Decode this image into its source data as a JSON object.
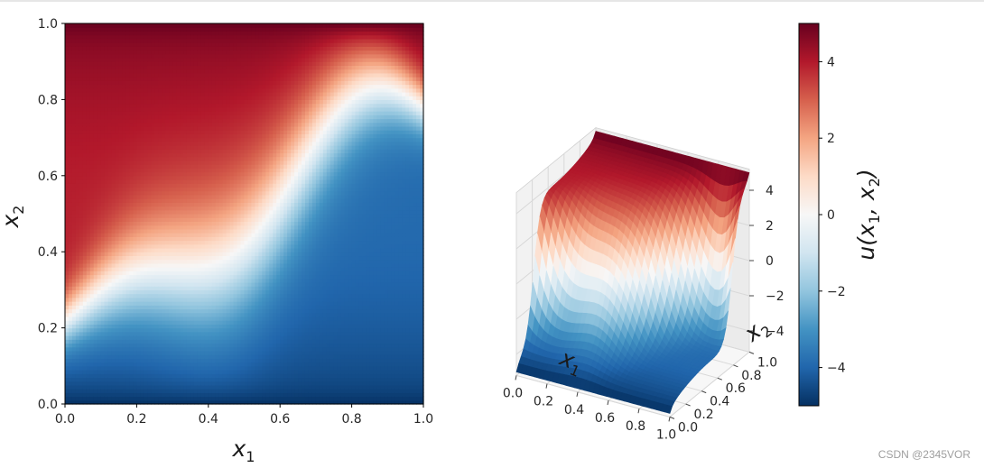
{
  "chart_data": [
    {
      "type": "heatmap",
      "title": "",
      "xlabel": "x1",
      "ylabel": "x2",
      "xlim": [
        0.0,
        1.0
      ],
      "ylim": [
        0.0,
        1.0
      ],
      "xticks": [
        "0.0",
        "0.2",
        "0.4",
        "0.6",
        "0.8",
        "1.0"
      ],
      "yticks": [
        "0.0",
        "0.2",
        "0.4",
        "0.6",
        "0.8",
        "1.0"
      ],
      "colormap": "RdBu_r",
      "value_range": [
        -5,
        5
      ],
      "boundary_values": {
        "top": 5,
        "bottom": -5,
        "left_top": 5,
        "right_bottom": -5
      },
      "grid": false
    },
    {
      "type": "surface3d",
      "xlabel": "x1",
      "ylabel": "x2",
      "xticks": [
        "0.0",
        "0.2",
        "0.4",
        "0.6",
        "0.8",
        "1.0"
      ],
      "yticks": [
        "0.0",
        "0.2",
        "0.4",
        "0.6",
        "0.8",
        "1.0"
      ],
      "zticks": [
        "4",
        "2",
        "0",
        "−2",
        "−4"
      ],
      "zlim": [
        -5,
        5
      ],
      "colormap": "RdBu_r",
      "grid": true
    },
    {
      "type": "colorbar",
      "label": "u(x1, x2)",
      "ticks": [
        "4",
        "2",
        "0",
        "−2",
        "−4"
      ],
      "tick_values": [
        4,
        2,
        0,
        -2,
        -4
      ],
      "range": [
        -5,
        5
      ],
      "colormap": "RdBu_r"
    }
  ],
  "labels": {
    "heat_x_main": "x",
    "heat_x_sub": "1",
    "heat_y_main": "x",
    "heat_y_sub": "2",
    "surf_x_main": "x",
    "surf_x_sub": "1",
    "surf_y_main": "x",
    "surf_y_sub": "2",
    "cbar_pre": "u(x",
    "cbar_s1": "1",
    "cbar_mid": ", x",
    "cbar_s2": "2",
    "cbar_post": ")"
  },
  "watermark": "CSDN @2345VOR"
}
